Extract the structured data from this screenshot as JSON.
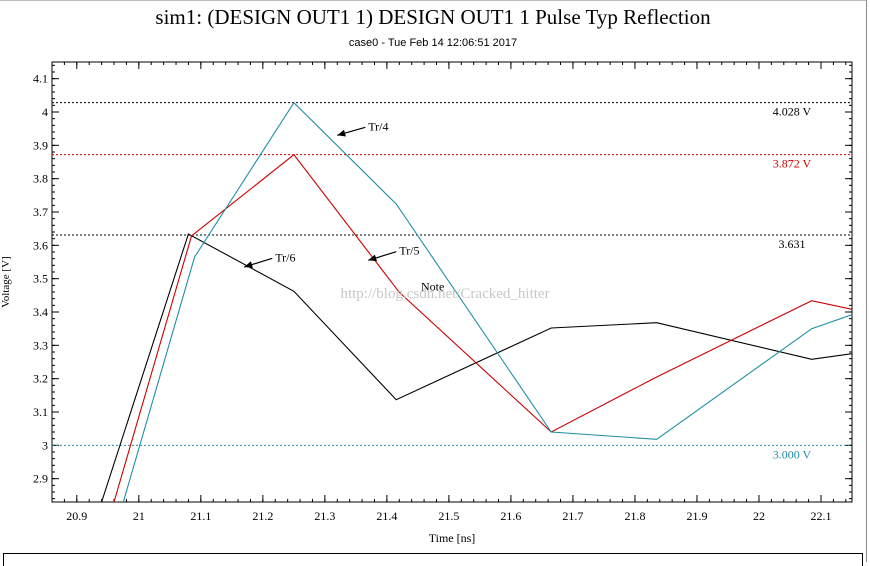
{
  "window": {
    "title": "sim1: (DESIGN OUT1 1) DESIGN OUT1 1 Pulse Typ Reflection",
    "subtitle": "case0 - Tue Feb 14 12:06:51 2017"
  },
  "watermark": "http://blog.csdn.net/Cracked_hitter",
  "chart_data": {
    "type": "line",
    "title": "sim1: (DESIGN OUT1 1) DESIGN OUT1 1 Pulse Typ Reflection",
    "subtitle": "case0 - Tue Feb 14 12:06:51 2017",
    "xlabel": "Time [ns]",
    "ylabel": "Voltage [V]",
    "xlim": [
      20.86,
      22.15
    ],
    "ylim": [
      2.83,
      4.15
    ],
    "xticks": [
      20.9,
      21,
      21.1,
      21.2,
      21.3,
      21.4,
      21.5,
      21.6,
      21.7,
      21.8,
      21.9,
      22,
      22.1
    ],
    "xtick_labels": [
      "20.9",
      "21",
      "21.1",
      "21.2",
      "21.3",
      "21.4",
      "21.5",
      "21.6",
      "21.7",
      "21.8",
      "21.9",
      "22",
      "22.1"
    ],
    "yticks": [
      2.9,
      3.0,
      3.1,
      3.2,
      3.3,
      3.4,
      3.5,
      3.6,
      3.7,
      3.8,
      3.9,
      4.0,
      4.1
    ],
    "ytick_labels": [
      "2.9",
      "3",
      "3.1",
      "3.2",
      "3.3",
      "3.4",
      "3.5",
      "3.6",
      "3.7",
      "3.8",
      "3.9",
      "4",
      "4.1"
    ],
    "grid": false,
    "series": [
      {
        "name": "Tr/6",
        "color": "#000000",
        "points": [
          [
            20.94,
            2.83
          ],
          [
            21.08,
            3.634
          ],
          [
            21.25,
            3.462
          ],
          [
            21.415,
            3.137
          ],
          [
            21.665,
            3.352
          ],
          [
            21.835,
            3.368
          ],
          [
            22.085,
            3.258
          ],
          [
            22.15,
            3.275
          ]
        ]
      },
      {
        "name": "Tr/5",
        "color": "#cc0000",
        "points": [
          [
            20.96,
            2.83
          ],
          [
            21.085,
            3.628
          ],
          [
            21.25,
            3.872
          ],
          [
            21.42,
            3.459
          ],
          [
            21.665,
            3.04
          ],
          [
            21.835,
            3.205
          ],
          [
            22.085,
            3.434
          ],
          [
            22.15,
            3.408
          ]
        ]
      },
      {
        "name": "Tr/4",
        "color": "#1f8fa5",
        "points": [
          [
            20.975,
            2.83
          ],
          [
            21.09,
            3.565
          ],
          [
            21.25,
            4.028
          ],
          [
            21.415,
            3.724
          ],
          [
            21.665,
            3.04
          ],
          [
            21.835,
            3.018
          ],
          [
            22.085,
            3.35
          ],
          [
            22.15,
            3.392
          ]
        ]
      }
    ],
    "reference_lines": [
      {
        "value": 4.028,
        "label": "4.028 V",
        "color": "#000000"
      },
      {
        "value": 3.872,
        "label": "3.872 V",
        "color": "#cc0000"
      },
      {
        "value": 3.631,
        "label": "3.631",
        "color": "#000000"
      },
      {
        "value": 3.0,
        "label": "3.000 V",
        "color": "#1f8fa5"
      }
    ],
    "annotations": [
      {
        "text": "Tr/4",
        "arrow_to": [
          21.32,
          3.93
        ],
        "text_at": [
          21.37,
          3.945
        ]
      },
      {
        "text": "Tr/5",
        "arrow_to": [
          21.37,
          3.555
        ],
        "text_at": [
          21.42,
          3.572
        ]
      },
      {
        "text": "Tr/6",
        "arrow_to": [
          21.17,
          3.535
        ],
        "text_at": [
          21.22,
          3.552
        ]
      },
      {
        "text": "Note",
        "text_at": [
          21.455,
          3.465
        ]
      }
    ]
  }
}
